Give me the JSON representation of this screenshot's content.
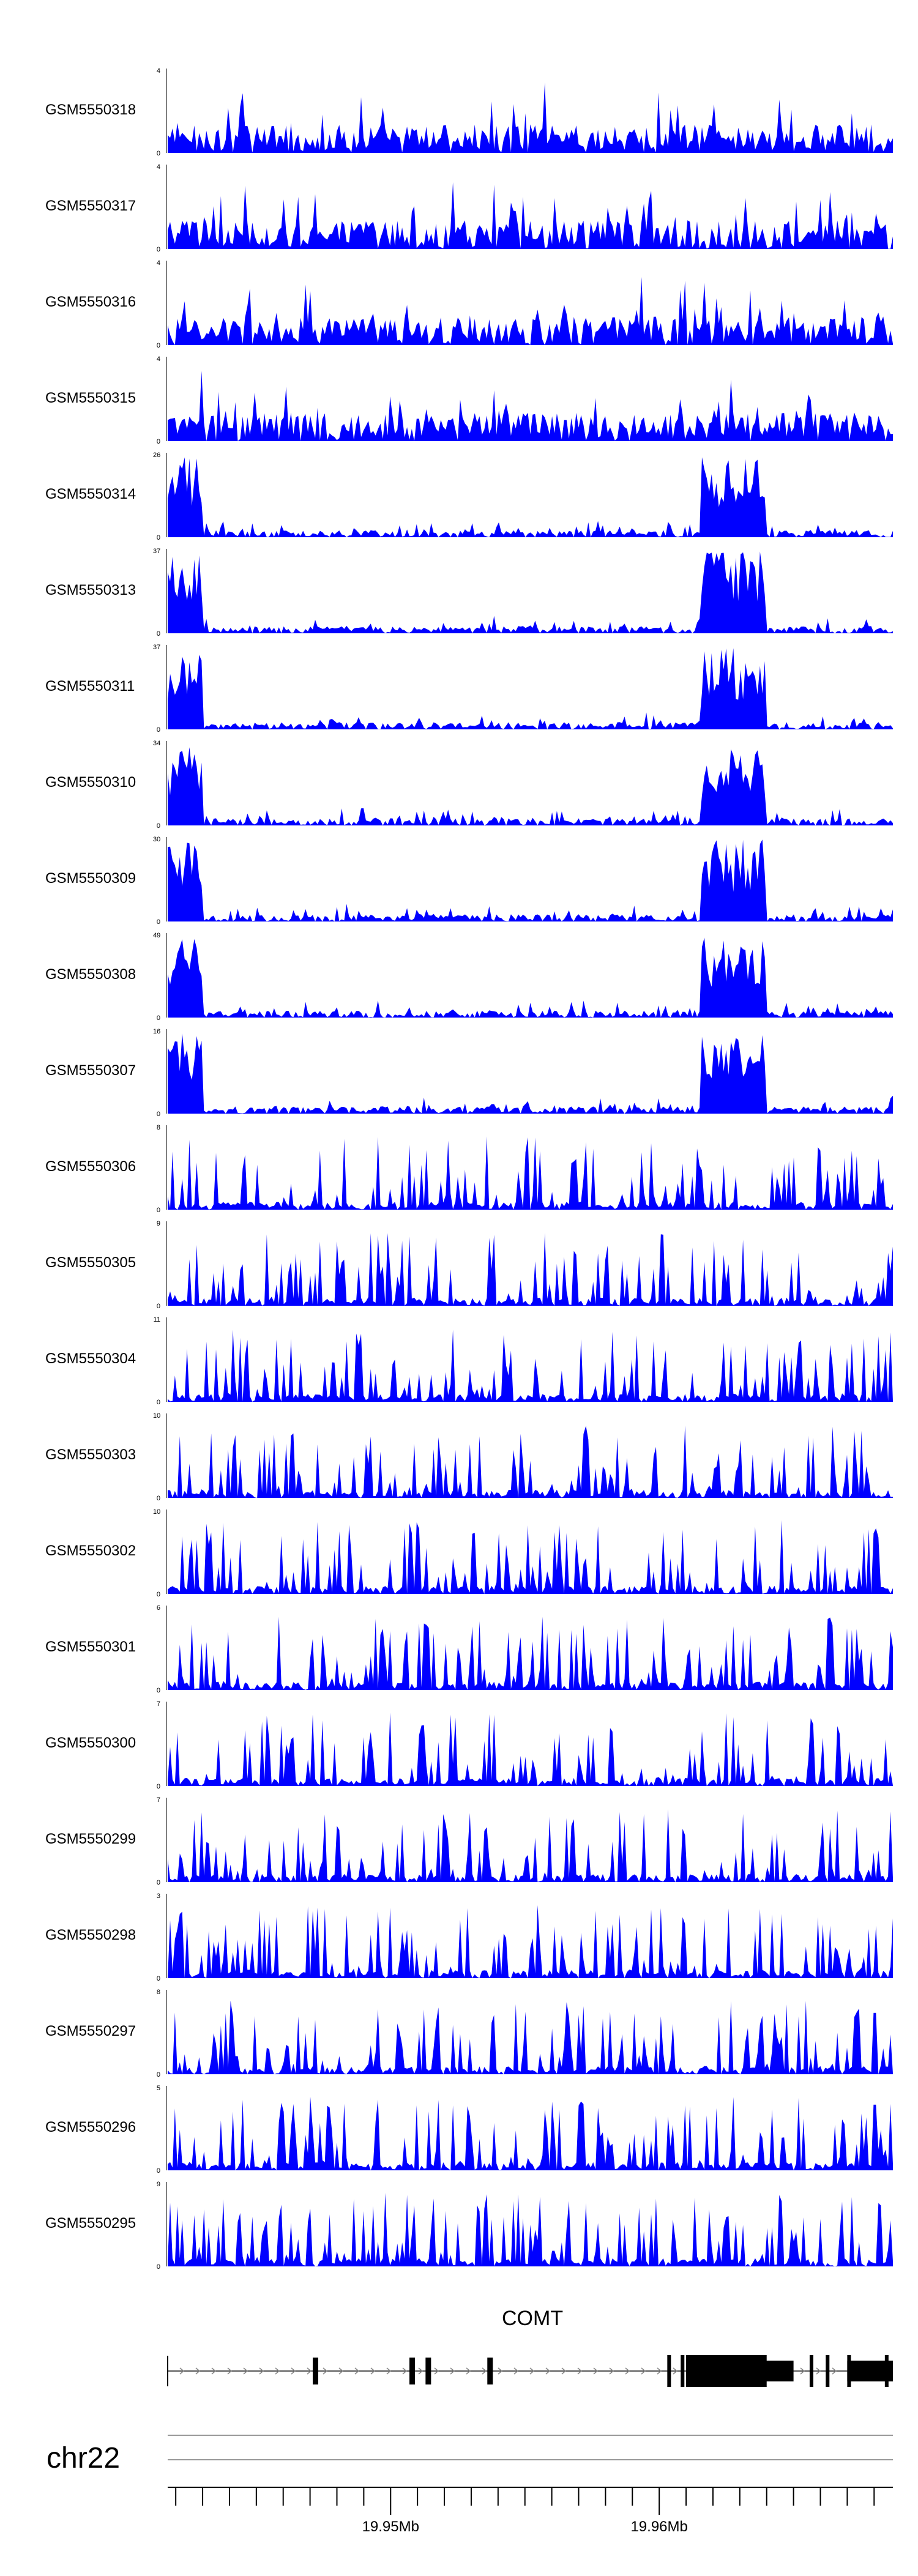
{
  "colors": {
    "signal": "#0000ff",
    "axis": "#000000",
    "gene": "#000000"
  },
  "tracks": [
    {
      "label": "GSM5550318",
      "max": "4",
      "min": "0"
    },
    {
      "label": "GSM5550317",
      "max": "4",
      "min": "0"
    },
    {
      "label": "GSM5550316",
      "max": "4",
      "min": "0"
    },
    {
      "label": "GSM5550315",
      "max": "4",
      "min": "0"
    },
    {
      "label": "GSM5550314",
      "max": "26",
      "min": "0"
    },
    {
      "label": "GSM5550313",
      "max": "37",
      "min": "0"
    },
    {
      "label": "GSM5550311",
      "max": "37",
      "min": "0"
    },
    {
      "label": "GSM5550310",
      "max": "34",
      "min": "0"
    },
    {
      "label": "GSM5550309",
      "max": "30",
      "min": "0"
    },
    {
      "label": "GSM5550308",
      "max": "49",
      "min": "0"
    },
    {
      "label": "GSM5550307",
      "max": "16",
      "min": "0"
    },
    {
      "label": "GSM5550306",
      "max": "8",
      "min": "0"
    },
    {
      "label": "GSM5550305",
      "max": "9",
      "min": "0"
    },
    {
      "label": "GSM5550304",
      "max": "11",
      "min": "0"
    },
    {
      "label": "GSM5550303",
      "max": "10",
      "min": "0"
    },
    {
      "label": "GSM5550302",
      "max": "10",
      "min": "0"
    },
    {
      "label": "GSM5550301",
      "max": "6",
      "min": "0"
    },
    {
      "label": "GSM5550300",
      "max": "7",
      "min": "0"
    },
    {
      "label": "GSM5550299",
      "max": "7",
      "min": "0"
    },
    {
      "label": "GSM5550298",
      "max": "3",
      "min": "0"
    },
    {
      "label": "GSM5550297",
      "max": "8",
      "min": "0"
    },
    {
      "label": "GSM5550296",
      "max": "5",
      "min": "0"
    },
    {
      "label": "GSM5550295",
      "max": "9",
      "min": "0"
    }
  ],
  "gene": {
    "name": "COMT",
    "strand": "+"
  },
  "chromosome": {
    "label": "chr22"
  },
  "axis": {
    "ticks": [
      "19.95Mb",
      "19.96Mb"
    ],
    "tick_values": [
      19.95,
      19.96
    ],
    "xlim": [
      19.9417,
      19.9687
    ]
  },
  "chart_data": {
    "type": "area",
    "title": "",
    "xlabel": "",
    "ylabel": "",
    "series_names": [
      "GSM5550318",
      "GSM5550317",
      "GSM5550316",
      "GSM5550315",
      "GSM5550314",
      "GSM5550313",
      "GSM5550311",
      "GSM5550310",
      "GSM5550309",
      "GSM5550308",
      "GSM5550307",
      "GSM5550306",
      "GSM5550305",
      "GSM5550304",
      "GSM5550303",
      "GSM5550302",
      "GSM5550301",
      "GSM5550300",
      "GSM5550299",
      "GSM5550298",
      "GSM5550297",
      "GSM5550296",
      "GSM5550295"
    ],
    "ymax": [
      4,
      4,
      4,
      4,
      26,
      37,
      37,
      34,
      30,
      49,
      16,
      8,
      9,
      11,
      10,
      10,
      6,
      7,
      7,
      3,
      8,
      5,
      9
    ],
    "ylim_min": 0,
    "x_range_mb": [
      19.9417,
      19.9687
    ],
    "enriched_regions_mb": [
      [
        19.9417,
        19.943
      ],
      [
        19.9615,
        19.964
      ]
    ],
    "gene_exons_mb": [
      19.9471,
      19.9507,
      19.9513,
      19.9536,
      19.9603,
      19.9608,
      19.9614,
      19.9622,
      19.9627,
      19.9636,
      19.9656,
      19.9662,
      19.967,
      19.9684
    ]
  }
}
